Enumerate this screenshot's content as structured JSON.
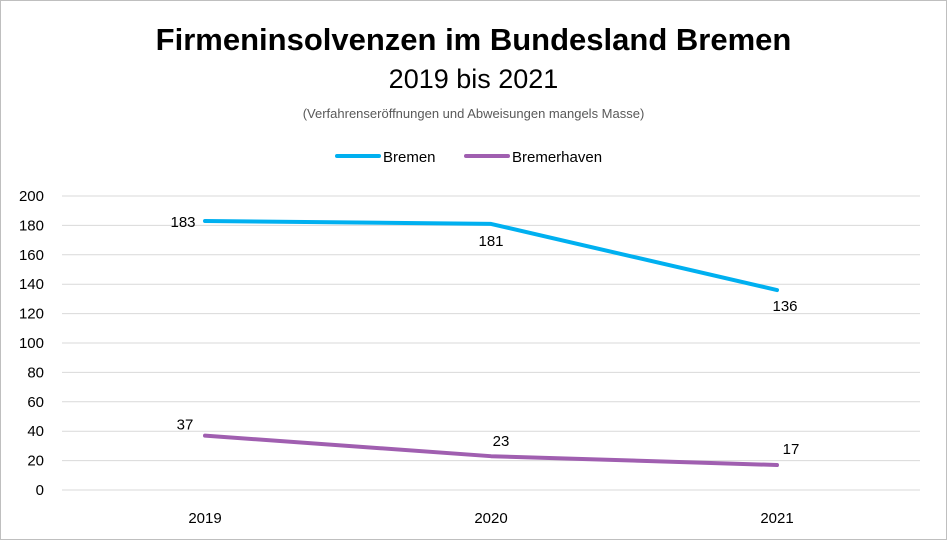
{
  "chart_data": {
    "type": "line",
    "title": "Firmeninsolvenzen im Bundesland Bremen",
    "subtitle": "2019 bis 2021",
    "note": "(Verfahrenseröffnungen und Abweisungen mangels Masse)",
    "categories": [
      "2019",
      "2020",
      "2021"
    ],
    "series": [
      {
        "name": "Bremen",
        "values": [
          183,
          181,
          136
        ],
        "color": "#00b0f0"
      },
      {
        "name": "Bremerhaven",
        "values": [
          37,
          23,
          17
        ],
        "color": "#a05fb0"
      }
    ],
    "ylim": [
      0,
      200
    ],
    "yticks": [
      0,
      20,
      40,
      60,
      80,
      100,
      120,
      140,
      160,
      180,
      200
    ],
    "grid": true,
    "legend": "top"
  }
}
